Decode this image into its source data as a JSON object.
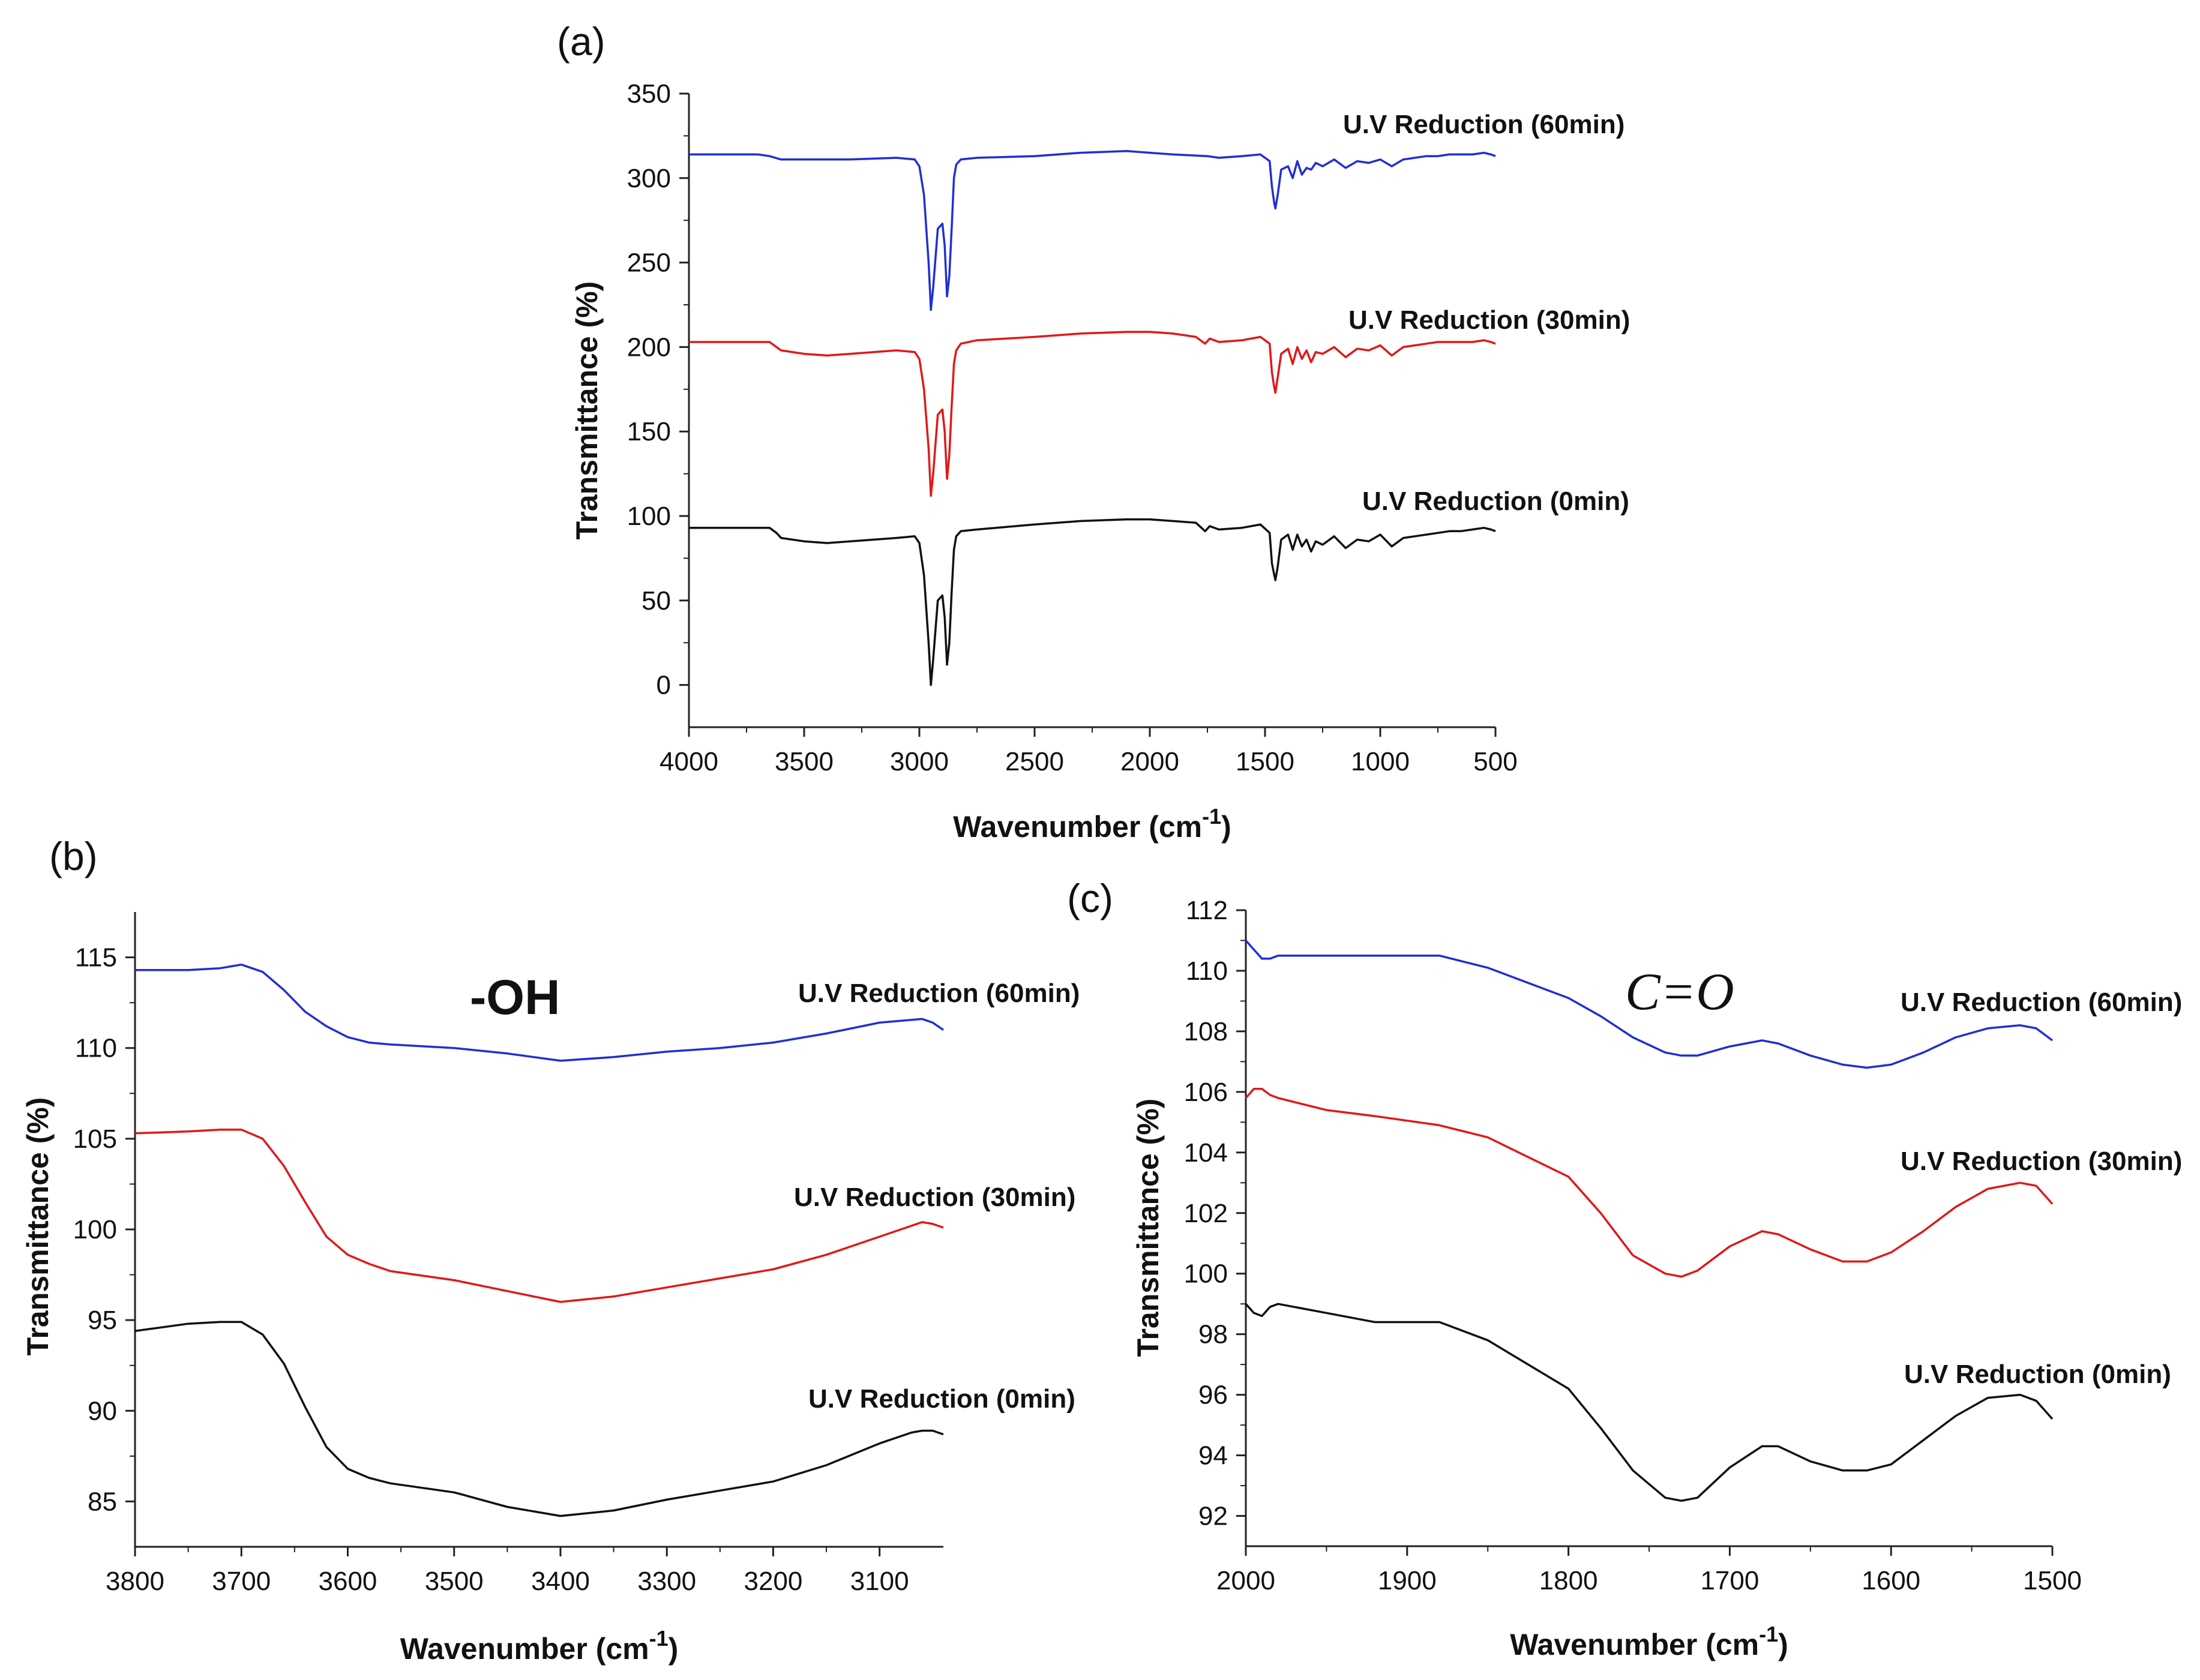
{
  "chart_data": [
    {
      "panel": "(a)",
      "type": "line",
      "xlabel": "Wavenumber (cm-1)",
      "xlabel_main": "Wavenumber (cm",
      "xlabel_sup": "-1",
      "xlabel_close": ")",
      "ylabel": "Transmittance (%)",
      "xlim": [
        4000,
        500
      ],
      "ylim": [
        -25,
        350
      ],
      "xticks": [
        4000,
        3500,
        3000,
        2500,
        2000,
        1500,
        1000,
        500
      ],
      "yticks": [
        0,
        50,
        100,
        150,
        200,
        250,
        300,
        350
      ],
      "series": [
        {
          "name": "U.V Reduction (60min)",
          "color": "#1f2fd6",
          "x": [
            4000,
            3700,
            3650,
            3600,
            3500,
            3300,
            3100,
            3020,
            3000,
            2980,
            2960,
            2950,
            2940,
            2920,
            2900,
            2890,
            2880,
            2870,
            2860,
            2850,
            2840,
            2820,
            2750,
            2500,
            2300,
            2100,
            2000,
            1900,
            1750,
            1700,
            1600,
            1520,
            1480,
            1470,
            1460,
            1455,
            1445,
            1430,
            1400,
            1380,
            1360,
            1340,
            1320,
            1300,
            1280,
            1250,
            1200,
            1150,
            1100,
            1050,
            1000,
            950,
            900,
            850,
            800,
            750,
            700,
            650,
            600,
            550,
            520,
            500
          ],
          "values": [
            314,
            314,
            313,
            311,
            311,
            311,
            312,
            311,
            307,
            290,
            250,
            222,
            235,
            270,
            273,
            260,
            230,
            242,
            270,
            300,
            308,
            311,
            312,
            313,
            315,
            316,
            315,
            314,
            313,
            312,
            313,
            314,
            310,
            295,
            285,
            282,
            290,
            305,
            307,
            300,
            310,
            302,
            306,
            305,
            309,
            307,
            311,
            306,
            310,
            309,
            311,
            307,
            311,
            312,
            313,
            313,
            314,
            314,
            314,
            315,
            314,
            313
          ]
        },
        {
          "name": "U.V Reduction (30min)",
          "color": "#e01818",
          "x": [
            4000,
            3700,
            3650,
            3620,
            3600,
            3500,
            3400,
            3300,
            3100,
            3020,
            3000,
            2980,
            2960,
            2950,
            2940,
            2920,
            2900,
            2890,
            2880,
            2870,
            2860,
            2850,
            2840,
            2820,
            2750,
            2500,
            2300,
            2100,
            2000,
            1900,
            1800,
            1760,
            1740,
            1700,
            1600,
            1520,
            1480,
            1470,
            1460,
            1455,
            1445,
            1430,
            1400,
            1380,
            1360,
            1340,
            1320,
            1300,
            1280,
            1250,
            1200,
            1150,
            1100,
            1050,
            1000,
            950,
            900,
            850,
            800,
            750,
            700,
            650,
            600,
            550,
            520,
            500
          ],
          "values": [
            203,
            203,
            203,
            200,
            198,
            196,
            195,
            196,
            198,
            197,
            193,
            175,
            140,
            112,
            125,
            160,
            163,
            150,
            122,
            136,
            165,
            190,
            198,
            202,
            204,
            206,
            208,
            209,
            209,
            208,
            206,
            202,
            205,
            203,
            204,
            206,
            202,
            185,
            176,
            173,
            182,
            196,
            199,
            190,
            200,
            193,
            198,
            191,
            197,
            196,
            200,
            194,
            199,
            198,
            201,
            195,
            200,
            201,
            202,
            203,
            203,
            203,
            203,
            204,
            203,
            202
          ]
        },
        {
          "name": "U.V Reduction (0min)",
          "color": "#111111",
          "x": [
            4000,
            3700,
            3650,
            3620,
            3600,
            3500,
            3400,
            3300,
            3100,
            3020,
            3000,
            2980,
            2960,
            2950,
            2940,
            2920,
            2900,
            2890,
            2880,
            2870,
            2860,
            2850,
            2840,
            2820,
            2750,
            2500,
            2300,
            2100,
            2000,
            1900,
            1800,
            1760,
            1740,
            1700,
            1600,
            1520,
            1480,
            1470,
            1460,
            1455,
            1445,
            1430,
            1400,
            1380,
            1360,
            1340,
            1320,
            1300,
            1280,
            1250,
            1200,
            1150,
            1100,
            1050,
            1000,
            950,
            900,
            850,
            800,
            750,
            700,
            650,
            600,
            550,
            520,
            500
          ],
          "values": [
            93,
            93,
            93,
            90,
            87,
            85,
            84,
            85,
            87,
            88,
            84,
            65,
            25,
            0,
            15,
            50,
            53,
            40,
            12,
            25,
            55,
            80,
            88,
            91,
            92,
            95,
            97,
            98,
            98,
            97,
            96,
            91,
            94,
            92,
            93,
            95,
            90,
            72,
            65,
            62,
            70,
            86,
            89,
            80,
            89,
            82,
            86,
            79,
            85,
            83,
            88,
            81,
            86,
            85,
            89,
            82,
            87,
            88,
            89,
            90,
            91,
            91,
            92,
            93,
            92,
            91
          ]
        }
      ]
    },
    {
      "panel": "(b)",
      "type": "line",
      "annotation": "-OH",
      "xlabel": "Wavenumber (cm-1)",
      "xlabel_main": "Wavenumber (cm",
      "xlabel_sup": "-1",
      "xlabel_close": ")",
      "ylabel": "Transmittance (%)",
      "xlim": [
        3800,
        3040
      ],
      "ylim": [
        82.5,
        117.5
      ],
      "xticks": [
        3800,
        3700,
        3600,
        3500,
        3400,
        3300,
        3200,
        3100
      ],
      "yticks": [
        85,
        90,
        95,
        100,
        105,
        110,
        115
      ],
      "series": [
        {
          "name": "U.V Reduction (60min)",
          "color": "#1f2fd6",
          "x": [
            3800,
            3750,
            3720,
            3700,
            3680,
            3660,
            3640,
            3620,
            3600,
            3580,
            3560,
            3500,
            3450,
            3400,
            3350,
            3300,
            3250,
            3200,
            3150,
            3100,
            3060,
            3050,
            3040
          ],
          "values": [
            114.3,
            114.3,
            114.4,
            114.6,
            114.2,
            113.2,
            112.0,
            111.2,
            110.6,
            110.3,
            110.2,
            110.0,
            109.7,
            109.3,
            109.5,
            109.8,
            110.0,
            110.3,
            110.8,
            111.4,
            111.6,
            111.4,
            111.0
          ]
        },
        {
          "name": "U.V Reduction (30min)",
          "color": "#e01818",
          "x": [
            3800,
            3750,
            3720,
            3700,
            3680,
            3660,
            3640,
            3620,
            3600,
            3580,
            3560,
            3500,
            3450,
            3400,
            3350,
            3300,
            3250,
            3200,
            3150,
            3100,
            3070,
            3060,
            3050,
            3040
          ],
          "values": [
            105.3,
            105.4,
            105.5,
            105.5,
            105.0,
            103.5,
            101.5,
            99.6,
            98.6,
            98.1,
            97.7,
            97.2,
            96.6,
            96.0,
            96.3,
            96.8,
            97.3,
            97.8,
            98.6,
            99.6,
            100.2,
            100.4,
            100.3,
            100.1
          ]
        },
        {
          "name": "U.V Reduction (0min)",
          "color": "#111111",
          "x": [
            3800,
            3750,
            3720,
            3700,
            3680,
            3660,
            3640,
            3620,
            3600,
            3580,
            3560,
            3500,
            3450,
            3400,
            3350,
            3300,
            3250,
            3200,
            3150,
            3100,
            3070,
            3060,
            3050,
            3040
          ],
          "values": [
            94.4,
            94.8,
            94.9,
            94.9,
            94.2,
            92.6,
            90.2,
            88.0,
            86.8,
            86.3,
            86.0,
            85.5,
            84.7,
            84.2,
            84.5,
            85.1,
            85.6,
            86.1,
            87.0,
            88.2,
            88.8,
            88.9,
            88.9,
            88.7
          ]
        }
      ]
    },
    {
      "panel": "(c)",
      "type": "line",
      "annotation": "C=O",
      "xlabel": "Wavenumber (cm-1)",
      "xlabel_main": "Wavenumber (cm",
      "xlabel_sup": "-1",
      "xlabel_close": ")",
      "ylabel": "Transmittance (%)",
      "xlim": [
        2000,
        1500
      ],
      "ylim": [
        91,
        112
      ],
      "xticks": [
        2000,
        1900,
        1800,
        1700,
        1600,
        1500
      ],
      "yticks": [
        92,
        94,
        96,
        98,
        100,
        102,
        104,
        106,
        108,
        110,
        112
      ],
      "series": [
        {
          "name": "U.V Reduction (60min)",
          "color": "#1f2fd6",
          "x": [
            2000,
            1995,
            1990,
            1985,
            1980,
            1950,
            1920,
            1880,
            1850,
            1800,
            1780,
            1760,
            1740,
            1730,
            1720,
            1700,
            1680,
            1670,
            1650,
            1630,
            1615,
            1600,
            1580,
            1560,
            1540,
            1520,
            1510,
            1505,
            1500
          ],
          "values": [
            111.0,
            110.7,
            110.4,
            110.4,
            110.5,
            110.5,
            110.5,
            110.5,
            110.1,
            109.1,
            108.5,
            107.8,
            107.3,
            107.2,
            107.2,
            107.5,
            107.7,
            107.6,
            107.2,
            106.9,
            106.8,
            106.9,
            107.3,
            107.8,
            108.1,
            108.2,
            108.1,
            107.9,
            107.7
          ]
        },
        {
          "name": "U.V Reduction (30min)",
          "color": "#e01818",
          "x": [
            2000,
            1995,
            1990,
            1985,
            1980,
            1950,
            1920,
            1880,
            1850,
            1800,
            1780,
            1760,
            1740,
            1730,
            1720,
            1700,
            1680,
            1670,
            1650,
            1630,
            1615,
            1600,
            1580,
            1560,
            1540,
            1520,
            1510,
            1505,
            1500
          ],
          "values": [
            105.8,
            106.1,
            106.1,
            105.9,
            105.8,
            105.4,
            105.2,
            104.9,
            104.5,
            103.2,
            102.0,
            100.6,
            100.0,
            99.9,
            100.1,
            100.9,
            101.4,
            101.3,
            100.8,
            100.4,
            100.4,
            100.7,
            101.4,
            102.2,
            102.8,
            103.0,
            102.9,
            102.6,
            102.3
          ]
        },
        {
          "name": "U.V Reduction (0min)",
          "color": "#111111",
          "x": [
            2000,
            1995,
            1990,
            1985,
            1980,
            1950,
            1920,
            1880,
            1850,
            1800,
            1780,
            1760,
            1740,
            1730,
            1720,
            1700,
            1680,
            1670,
            1650,
            1630,
            1615,
            1600,
            1580,
            1560,
            1540,
            1520,
            1510,
            1505,
            1500
          ],
          "values": [
            99.0,
            98.7,
            98.6,
            98.9,
            99.0,
            98.7,
            98.4,
            98.4,
            97.8,
            96.2,
            94.9,
            93.5,
            92.6,
            92.5,
            92.6,
            93.6,
            94.3,
            94.3,
            93.8,
            93.5,
            93.5,
            93.7,
            94.5,
            95.3,
            95.9,
            96.0,
            95.8,
            95.5,
            95.2
          ]
        }
      ]
    }
  ]
}
